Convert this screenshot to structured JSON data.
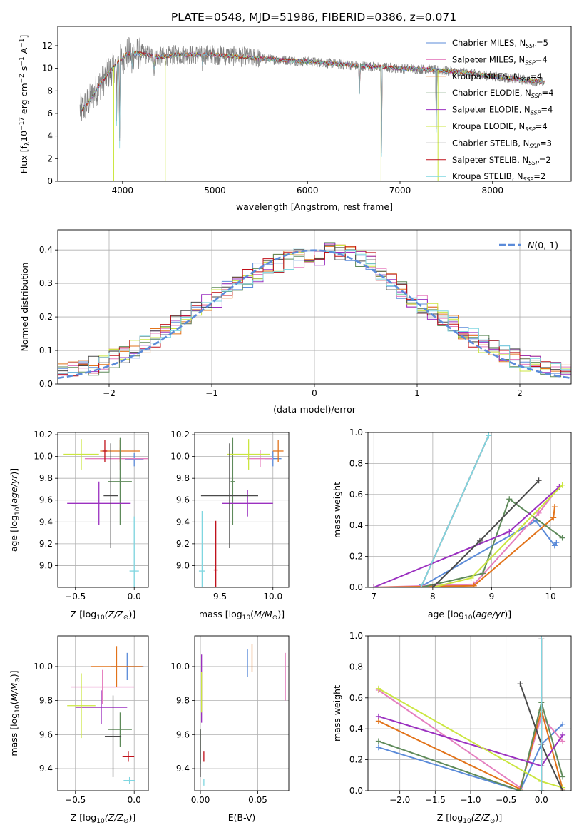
{
  "figure": {
    "title": "PLATE=0548, MJD=51986, FIBERID=0386, z=0.071"
  },
  "series_styles": [
    {
      "key": "chabrier_miles",
      "label_main": "Chabrier MILES, N",
      "label_sub": "SSP",
      "label_tail": "=5",
      "color": "#5b8bd9"
    },
    {
      "key": "salpeter_miles",
      "label_main": "Salpeter MILES, N",
      "label_sub": "SSP",
      "label_tail": "=4",
      "color": "#e57fbf"
    },
    {
      "key": "kroupa_miles",
      "label_main": "Kroupa MILES, N",
      "label_sub": "SSP",
      "label_tail": "=4",
      "color": "#e2731a"
    },
    {
      "key": "chabrier_elodie",
      "label_main": "Chabrier ELODIE, N",
      "label_sub": "SSP",
      "label_tail": "=4",
      "color": "#5e8a5a"
    },
    {
      "key": "salpeter_elodie",
      "label_main": "Salpeter ELODIE, N",
      "label_sub": "SSP",
      "label_tail": "=4",
      "color": "#9b30c0"
    },
    {
      "key": "kroupa_elodie",
      "label_main": "Kroupa ELODIE, N",
      "label_sub": "SSP",
      "label_tail": "=4",
      "color": "#cbe640"
    },
    {
      "key": "chabrier_stelib",
      "label_main": "Chabrier STELIB, N",
      "label_sub": "SSP",
      "label_tail": "=3",
      "color": "#4a4a4a"
    },
    {
      "key": "salpeter_stelib",
      "label_main": "Salpeter STELIB, N",
      "label_sub": "SSP",
      "label_tail": "=2",
      "color": "#c0101a"
    },
    {
      "key": "kroupa_stelib",
      "label_main": "Kroupa STELIB, N",
      "label_sub": "SSP",
      "label_tail": "=2",
      "color": "#7fd6e0"
    }
  ],
  "chart_data": [
    {
      "id": "spectrum",
      "type": "line",
      "xlabel": "wavelength [Angstrom, rest frame]",
      "ylabel": "Flux [f",
      "xlim": [
        3300,
        8850
      ],
      "ylim": [
        0,
        13.7
      ],
      "xticks": [
        4000,
        5000,
        6000,
        7000,
        8000
      ],
      "yticks": [
        0,
        2,
        4,
        6,
        8,
        10,
        12
      ],
      "data_color": "#7f7f7f",
      "continuum": {
        "x": [
          3560,
          3650,
          3750,
          3850,
          3950,
          4050,
          4200,
          4400,
          4600,
          4800,
          5000,
          5300,
          5600,
          6000,
          6300,
          6600,
          7000,
          7300,
          7600,
          8000,
          8300,
          8600
        ],
        "y": [
          6.3,
          7.2,
          8.5,
          9.6,
          10.5,
          11.3,
          11.3,
          11.0,
          11.2,
          11.2,
          11.2,
          11.0,
          10.8,
          10.6,
          10.4,
          10.2,
          10.0,
          9.9,
          9.7,
          9.3,
          9.0,
          8.7
        ]
      },
      "absorption": [
        [
          3934,
          9.2
        ],
        [
          3968,
          8.5
        ],
        [
          4101,
          3.0
        ],
        [
          4340,
          3.5
        ],
        [
          4861,
          2.0
        ],
        [
          6563,
          5.5
        ],
        [
          6800,
          9.0
        ],
        [
          7390,
          9.0
        ]
      ],
      "legend": "top-right"
    },
    {
      "id": "residual_hist",
      "type": "histogram",
      "xlabel": "(data-model)/error",
      "ylabel": "Normed distribution",
      "xlim": [
        -2.5,
        2.5
      ],
      "ylim": [
        0,
        0.46
      ],
      "xticks": [
        -2,
        -1,
        0,
        1,
        2
      ],
      "yticks": [
        0.0,
        0.1,
        0.2,
        0.3,
        0.4
      ],
      "bin_width": 0.1,
      "reference": {
        "name_main": "N",
        "name_tail": "(0, 1)",
        "color": "#5b8bd9"
      },
      "legend": "top-right"
    },
    {
      "id": "age_vs_Z",
      "type": "errorbar",
      "xlabel_main": "Z [log",
      "xlabel_sub": "10",
      "xlabel_tail": "(Z/Z",
      "ylabel": "age",
      "xlim": [
        -0.65,
        0.12
      ],
      "ylim": [
        8.8,
        10.22
      ],
      "xticks": [
        -0.5,
        0.0
      ],
      "yticks": [
        9.0,
        9.2,
        9.4,
        9.6,
        9.8,
        10.0,
        10.2
      ],
      "points": [
        {
          "s": 0,
          "x": 0.0,
          "y": 9.97,
          "xerr": 0.08,
          "yerr": 0.06
        },
        {
          "s": 1,
          "x": -0.12,
          "y": 9.98,
          "xerr": 0.3,
          "yerr": 0.1
        },
        {
          "s": 2,
          "x": -0.12,
          "y": 10.05,
          "xerr": 0.17,
          "yerr": 0.1
        },
        {
          "s": 3,
          "x": -0.12,
          "y": 9.77,
          "xerr": 0.1,
          "yerr": 0.4
        },
        {
          "s": 4,
          "x": -0.3,
          "y": 9.57,
          "xerr": 0.27,
          "yerr": 0.2
        },
        {
          "s": 5,
          "x": -0.45,
          "y": 10.02,
          "xerr": 0.15,
          "yerr": 0.14
        },
        {
          "s": 6,
          "x": -0.2,
          "y": 9.64,
          "xerr": 0.06,
          "yerr": 0.48
        },
        {
          "s": 7,
          "x": -0.25,
          "y": 10.05,
          "xerr": 0.02,
          "yerr": 0.1
        },
        {
          "s": 8,
          "x": 0.0,
          "y": 8.95,
          "xerr": 0.04,
          "yerr": 0.5
        }
      ]
    },
    {
      "id": "age_vs_mass",
      "type": "errorbar",
      "xlabel_main": "mass [log",
      "xlabel_sub": "10",
      "xlabel_tail": "(M/M",
      "xlim": [
        9.26,
        10.15
      ],
      "ylim": [
        8.8,
        10.22
      ],
      "xticks": [
        9.5,
        10.0
      ],
      "yticks": [
        9.0,
        9.2,
        9.4,
        9.6,
        9.8,
        10.0,
        10.2
      ],
      "points": [
        {
          "s": 0,
          "x": 10.0,
          "y": 9.98,
          "xerr": 0.08,
          "yerr": 0.07
        },
        {
          "s": 1,
          "x": 9.88,
          "y": 9.98,
          "xerr": 0.12,
          "yerr": 0.08
        },
        {
          "s": 2,
          "x": 10.05,
          "y": 10.05,
          "xerr": 0.05,
          "yerr": 0.1
        },
        {
          "s": 3,
          "x": 9.62,
          "y": 9.77,
          "xerr": 0.02,
          "yerr": 0.4
        },
        {
          "s": 4,
          "x": 9.76,
          "y": 9.57,
          "xerr": 0.24,
          "yerr": 0.12
        },
        {
          "s": 5,
          "x": 9.77,
          "y": 10.02,
          "xerr": 0.2,
          "yerr": 0.14
        },
        {
          "s": 6,
          "x": 9.59,
          "y": 9.64,
          "xerr": 0.27,
          "yerr": 0.48
        },
        {
          "s": 7,
          "x": 9.46,
          "y": 8.96,
          "xerr": 0.02,
          "yerr": 0.45
        },
        {
          "s": 8,
          "x": 9.33,
          "y": 8.95,
          "xerr": 0.03,
          "yerr": 0.55
        }
      ]
    },
    {
      "id": "mass_weight_vs_age",
      "type": "line",
      "xlabel_main": "age  [log",
      "xlabel_sub": "10",
      "xlabel_tail": "(age/yr)]",
      "ylabel": "mass weight",
      "xlim": [
        6.9,
        10.35
      ],
      "ylim": [
        0,
        1.0
      ],
      "xticks": [
        7,
        8,
        9,
        10
      ],
      "yticks": [
        0.0,
        0.2,
        0.4,
        0.6,
        0.8,
        1.0
      ],
      "series": [
        {
          "s": 0,
          "x": [
            7.78,
            9.75,
            10.07,
            10.1
          ],
          "y": [
            0.0,
            0.43,
            0.27,
            0.29
          ]
        },
        {
          "s": 1,
          "x": [
            7.0,
            8.7,
            9.8,
            10.15
          ],
          "y": [
            0.0,
            0.02,
            0.48,
            0.65
          ]
        },
        {
          "s": 2,
          "x": [
            7.0,
            8.7,
            10.05,
            10.07
          ],
          "y": [
            0.0,
            0.01,
            0.45,
            0.52
          ]
        },
        {
          "s": 3,
          "x": [
            7.8,
            8.85,
            9.3,
            10.2
          ],
          "y": [
            0.0,
            0.09,
            0.57,
            0.32
          ]
        },
        {
          "s": 4,
          "x": [
            7.0,
            9.3,
            10.15
          ],
          "y": [
            0.0,
            0.36,
            0.65
          ]
        },
        {
          "s": 5,
          "x": [
            8.0,
            8.65,
            10.2
          ],
          "y": [
            0.0,
            0.06,
            0.66
          ]
        },
        {
          "s": 6,
          "x": [
            8.0,
            8.8,
            9.8
          ],
          "y": [
            0.0,
            0.3,
            0.69
          ]
        },
        {
          "s": 7,
          "x": [
            7.8,
            8.95
          ],
          "y": [
            0.0,
            0.98
          ]
        },
        {
          "s": 8,
          "x": [
            7.8,
            8.95
          ],
          "y": [
            0.0,
            0.98
          ]
        }
      ]
    },
    {
      "id": "mass_vs_Z",
      "type": "errorbar",
      "xlabel_main": "Z [log",
      "xlabel_sub": "10",
      "xlabel_tail": "(Z/Z",
      "ylabel": "mass",
      "xlim": [
        -0.65,
        0.12
      ],
      "ylim": [
        9.27,
        10.18
      ],
      "xticks": [
        -0.5,
        0.0
      ],
      "yticks": [
        9.4,
        9.6,
        9.8,
        10.0
      ],
      "points": [
        {
          "s": 0,
          "x": -0.06,
          "y": 10.0,
          "xerr": 0.14,
          "yerr": 0.08
        },
        {
          "s": 1,
          "x": -0.27,
          "y": 9.88,
          "xerr": 0.27,
          "yerr": 0.1
        },
        {
          "s": 2,
          "x": -0.15,
          "y": 10.0,
          "xerr": 0.22,
          "yerr": 0.12
        },
        {
          "s": 3,
          "x": -0.12,
          "y": 9.63,
          "xerr": 0.1,
          "yerr": 0.1
        },
        {
          "s": 4,
          "x": -0.28,
          "y": 9.76,
          "xerr": 0.22,
          "yerr": 0.1
        },
        {
          "s": 5,
          "x": -0.45,
          "y": 9.77,
          "xerr": 0.12,
          "yerr": 0.19
        },
        {
          "s": 6,
          "x": -0.18,
          "y": 9.59,
          "xerr": 0.07,
          "yerr": 0.24
        },
        {
          "s": 7,
          "x": -0.05,
          "y": 9.47,
          "xerr": 0.05,
          "yerr": 0.03
        },
        {
          "s": 8,
          "x": -0.04,
          "y": 9.33,
          "xerr": 0.05,
          "yerr": 0.02
        }
      ]
    },
    {
      "id": "mass_vs_EBV",
      "type": "errorbar",
      "xlabel": "E(B-V)",
      "xlim": [
        -0.005,
        0.077
      ],
      "ylim": [
        9.27,
        10.18
      ],
      "xticks": [
        0.0,
        0.05
      ],
      "yticks": [
        9.4,
        9.6,
        9.8,
        10.0
      ],
      "points": [
        {
          "s": 0,
          "x": 0.041,
          "y": 10.02,
          "xerr": 0.0,
          "yerr": 0.08
        },
        {
          "s": 1,
          "x": 0.074,
          "y": 9.94,
          "xerr": 0.0,
          "yerr": 0.14
        },
        {
          "s": 2,
          "x": 0.045,
          "y": 10.05,
          "xerr": 0.0,
          "yerr": 0.08
        },
        {
          "s": 3,
          "x": 0.0,
          "y": 9.53,
          "xerr": 0.0,
          "yerr": 0.1
        },
        {
          "s": 4,
          "x": 0.001,
          "y": 9.87,
          "xerr": 0.0,
          "yerr": 0.2
        },
        {
          "s": 5,
          "x": 0.001,
          "y": 9.85,
          "xerr": 0.0,
          "yerr": 0.12
        },
        {
          "s": 6,
          "x": 0.0,
          "y": 9.49,
          "xerr": 0.0,
          "yerr": 0.14
        },
        {
          "s": 7,
          "x": 0.003,
          "y": 9.47,
          "xerr": 0.0,
          "yerr": 0.03
        },
        {
          "s": 8,
          "x": 0.003,
          "y": 9.32,
          "xerr": 0.0,
          "yerr": 0.02
        }
      ]
    },
    {
      "id": "mass_weight_vs_Z",
      "type": "line",
      "xlabel_main": "Z [log",
      "xlabel_sub": "10",
      "xlabel_tail": "(Z/Z",
      "ylabel": "mass weight",
      "xlim": [
        -2.45,
        0.42
      ],
      "ylim": [
        0,
        1.0
      ],
      "xticks": [
        -2.0,
        -1.5,
        -1.0,
        -0.5,
        0.0
      ],
      "yticks": [
        0.0,
        0.2,
        0.4,
        0.6,
        0.8,
        1.0
      ],
      "series": [
        {
          "s": 0,
          "x": [
            -2.3,
            -0.3,
            0.0,
            0.3
          ],
          "y": [
            0.28,
            0.0,
            0.3,
            0.43
          ]
        },
        {
          "s": 1,
          "x": [
            -2.3,
            -0.3,
            0.0,
            0.3
          ],
          "y": [
            0.65,
            0.02,
            0.48,
            0.32
          ]
        },
        {
          "s": 2,
          "x": [
            -2.3,
            -0.3,
            0.0,
            0.3
          ],
          "y": [
            0.45,
            0.01,
            0.52,
            0.01
          ]
        },
        {
          "s": 3,
          "x": [
            -2.3,
            -0.3,
            0.0,
            0.3
          ],
          "y": [
            0.32,
            0.0,
            0.57,
            0.09
          ]
        },
        {
          "s": 4,
          "x": [
            -2.3,
            0.0,
            0.3
          ],
          "y": [
            0.48,
            0.16,
            0.36
          ]
        },
        {
          "s": 5,
          "x": [
            -2.3,
            0.0,
            0.3
          ],
          "y": [
            0.66,
            0.06,
            0.02
          ]
        },
        {
          "s": 6,
          "x": [
            -0.3,
            0.0,
            0.3
          ],
          "y": [
            0.69,
            0.3,
            0.0
          ]
        },
        {
          "s": 7,
          "x": [
            0.0,
            0.0
          ],
          "y": [
            0.0,
            0.98
          ]
        },
        {
          "s": 8,
          "x": [
            0.0,
            0.0
          ],
          "y": [
            0.0,
            0.98
          ]
        }
      ]
    }
  ]
}
